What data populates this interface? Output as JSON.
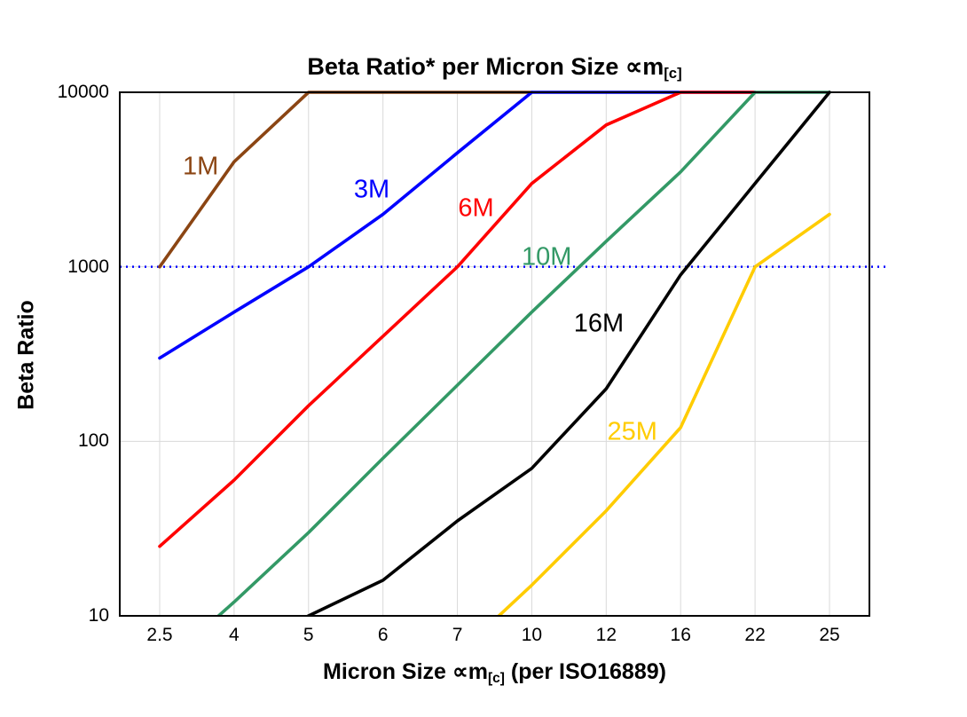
{
  "title": {
    "main": "Beta Ratio* per Micron Size ∝m",
    "sub": "[c]"
  },
  "y_axis": {
    "label": "Beta Ratio"
  },
  "x_axis": {
    "label_main": "Micron Size ∝m",
    "label_sub": "[c]",
    "label_rest": " (per ISO16889)"
  },
  "chart_data": {
    "type": "line",
    "title": "Beta Ratio* per Micron Size ∝m[c]",
    "xlabel": "Micron Size ∝m[c] (per ISO16889)",
    "ylabel": "Beta Ratio",
    "y_scale": "log",
    "ylim": [
      10,
      10000
    ],
    "y_ticks": [
      10,
      100,
      1000,
      10000
    ],
    "x_categories": [
      2.5,
      4,
      5,
      6,
      7,
      10,
      12,
      16,
      22,
      25
    ],
    "grid": true,
    "legend": "inline-labels",
    "series": [
      {
        "name": "1M",
        "color": "#8B4513",
        "values": [
          1000,
          4000,
          10000,
          10000,
          10000,
          10000,
          null,
          null,
          null,
          null
        ]
      },
      {
        "name": "3M",
        "color": "#0000FF",
        "values": [
          300,
          550,
          1000,
          2000,
          4500,
          10000,
          10000,
          10000,
          10000,
          null
        ]
      },
      {
        "name": "6M",
        "color": "#FF0000",
        "values": [
          25,
          60,
          160,
          400,
          1000,
          3000,
          6500,
          10000,
          10000,
          null
        ]
      },
      {
        "name": "10M",
        "color": "#339966",
        "values": [
          5,
          12,
          30,
          80,
          210,
          550,
          1400,
          3500,
          10000,
          10000
        ]
      },
      {
        "name": "16M",
        "color": "#000000",
        "values": [
          null,
          6,
          10,
          16,
          35,
          70,
          200,
          900,
          3000,
          10000
        ]
      },
      {
        "name": "25M",
        "color": "#FFCC00",
        "values": [
          null,
          null,
          null,
          null,
          6,
          15,
          40,
          120,
          1000,
          2000
        ]
      }
    ],
    "threshold_line": {
      "value": 1000,
      "color": "#0000FF",
      "style": "dotted"
    },
    "annotations": [
      {
        "text": "1M",
        "color": "#8B4513",
        "xi": 0.55,
        "value": 3800
      },
      {
        "text": "3M",
        "color": "#0000FF",
        "xi": 2.85,
        "value": 2800
      },
      {
        "text": "6M",
        "color": "#FF0000",
        "xi": 4.25,
        "value": 2200
      },
      {
        "text": "10M",
        "color": "#339966",
        "xi": 5.2,
        "value": 1150
      },
      {
        "text": "16M",
        "color": "#000000",
        "xi": 5.9,
        "value": 480
      },
      {
        "text": "25M",
        "color": "#FFCC00",
        "xi": 6.35,
        "value": 115
      }
    ]
  }
}
